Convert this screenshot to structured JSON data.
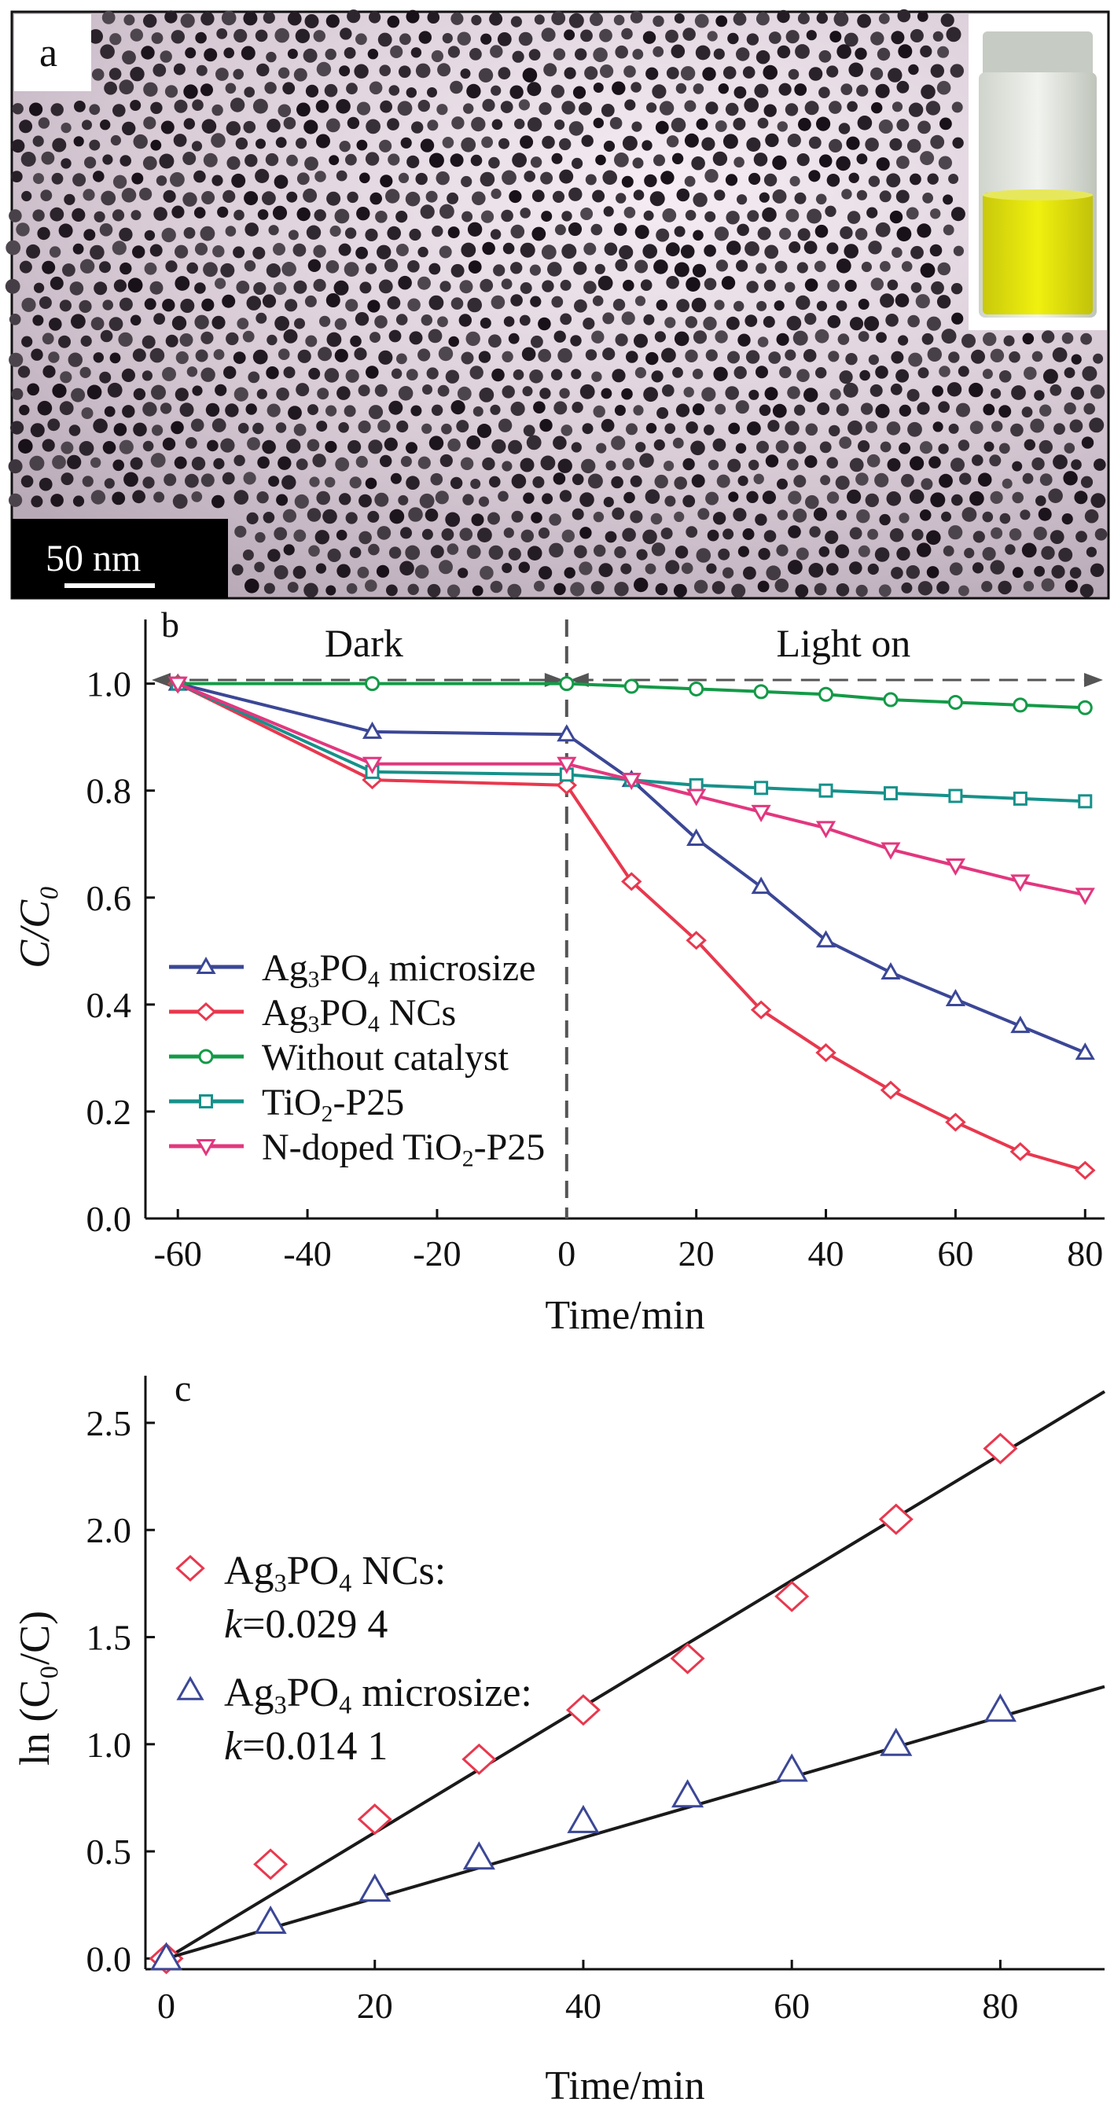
{
  "panel_a": {
    "label": "a",
    "scale_bar": "50 nm"
  },
  "colors": {
    "micro": "#3b4796",
    "ncs": "#e8384e",
    "without": "#139a47",
    "tio2": "#16918a",
    "ndoped": "#e2377e",
    "fit": "#1a1a1a",
    "dark_line": "#555555"
  },
  "chart_data": [
    {
      "type": "line",
      "panel_label": "b",
      "xlabel": "Time/min",
      "ylabel": "C/C₀",
      "xlim": [
        -65,
        83
      ],
      "ylim": [
        0.0,
        1.12
      ],
      "xticks": [
        "-60",
        "-40",
        "-20",
        "0",
        "20",
        "40",
        "60",
        "80"
      ],
      "yticks": [
        "0.0",
        "0.2",
        "0.4",
        "0.6",
        "0.8",
        "1.0"
      ],
      "legend_position": "lower-left",
      "annotations": {
        "dark": "Dark",
        "light": "Light on"
      },
      "series": [
        {
          "name_parts": [
            "Ag",
            "3",
            "PO",
            "4",
            " microsize"
          ],
          "color_key": "micro",
          "marker": "triangle-up",
          "x": [
            -60,
            -30,
            0,
            10,
            20,
            30,
            40,
            50,
            60,
            70,
            80
          ],
          "y": [
            1.0,
            0.91,
            0.905,
            0.82,
            0.71,
            0.62,
            0.52,
            0.46,
            0.41,
            0.36,
            0.31
          ]
        },
        {
          "name_parts": [
            "Ag",
            "3",
            "PO",
            "4",
            " NCs"
          ],
          "color_key": "ncs",
          "marker": "diamond",
          "x": [
            -60,
            -30,
            0,
            10,
            20,
            30,
            40,
            50,
            60,
            70,
            80
          ],
          "y": [
            1.0,
            0.82,
            0.81,
            0.63,
            0.52,
            0.39,
            0.31,
            0.24,
            0.18,
            0.125,
            0.09
          ]
        },
        {
          "name_parts": [
            "Without catalyst"
          ],
          "color_key": "without",
          "marker": "circle",
          "x": [
            -60,
            -30,
            0,
            10,
            20,
            30,
            40,
            50,
            60,
            70,
            80
          ],
          "y": [
            1.0,
            1.0,
            1.0,
            0.995,
            0.99,
            0.985,
            0.98,
            0.97,
            0.965,
            0.96,
            0.955
          ]
        },
        {
          "name_parts": [
            "TiO",
            "2",
            "-P25"
          ],
          "color_key": "tio2",
          "marker": "square",
          "x": [
            -60,
            -30,
            0,
            10,
            20,
            30,
            40,
            50,
            60,
            70,
            80
          ],
          "y": [
            1.0,
            0.835,
            0.83,
            0.82,
            0.81,
            0.805,
            0.8,
            0.795,
            0.79,
            0.785,
            0.78
          ]
        },
        {
          "name_parts": [
            "N-doped TiO",
            "2",
            "-P25"
          ],
          "color_key": "ndoped",
          "marker": "triangle-down",
          "x": [
            -60,
            -30,
            0,
            10,
            20,
            30,
            40,
            50,
            60,
            70,
            80
          ],
          "y": [
            1.0,
            0.85,
            0.85,
            0.82,
            0.79,
            0.76,
            0.73,
            0.69,
            0.66,
            0.63,
            0.605
          ]
        }
      ]
    },
    {
      "type": "scatter",
      "panel_label": "c",
      "xlabel": "Time/min",
      "ylabel": "ln (C₀/C)",
      "xlim": [
        -2,
        90
      ],
      "ylim": [
        -0.05,
        2.72
      ],
      "xticks": [
        "0",
        "20",
        "40",
        "60",
        "80"
      ],
      "yticks": [
        "0.0",
        "0.5",
        "1.0",
        "1.5",
        "2.0",
        "2.5"
      ],
      "legend_position": "middle-left",
      "series": [
        {
          "name_parts": [
            "Ag",
            "3",
            "PO",
            "4",
            " NCs:"
          ],
          "k_label": "=0.029 4",
          "color_key": "ncs",
          "marker": "diamond",
          "slope": 0.0294,
          "x": [
            0,
            10,
            20,
            30,
            40,
            50,
            60,
            70,
            80
          ],
          "y": [
            0.0,
            0.44,
            0.65,
            0.93,
            1.16,
            1.4,
            1.69,
            2.05,
            2.38
          ]
        },
        {
          "name_parts": [
            "Ag",
            "3",
            "PO",
            "4",
            " microsize:"
          ],
          "k_label": "=0.014 1",
          "color_key": "micro",
          "marker": "triangle-up",
          "slope": 0.0141,
          "x": [
            0,
            10,
            20,
            30,
            40,
            50,
            60,
            70,
            80
          ],
          "y": [
            0.0,
            0.17,
            0.32,
            0.47,
            0.64,
            0.76,
            0.88,
            1.0,
            1.16
          ]
        }
      ]
    }
  ]
}
